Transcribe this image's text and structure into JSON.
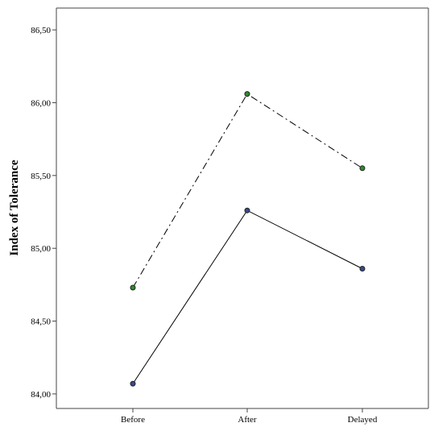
{
  "chart_data": {
    "type": "line",
    "x": [
      "Before",
      "After",
      "Delayed"
    ],
    "ylabel": "Index of Tolerance",
    "xlabel": "",
    "ylim": [
      83.9,
      86.65
    ],
    "yticks": [
      "84,00",
      "84,50",
      "85,00",
      "85,50",
      "86,00",
      "86,50"
    ],
    "ytick_values": [
      84.0,
      84.5,
      85.0,
      85.5,
      86.0,
      86.5
    ],
    "grid": false,
    "series": [
      {
        "style": "dash-dot",
        "line_color": "#000000",
        "marker_color": "#2e8b2e",
        "values": [
          84.73,
          86.06,
          85.55
        ]
      },
      {
        "style": "solid",
        "line_color": "#000000",
        "marker_color": "#3a4a8c",
        "values": [
          84.07,
          85.26,
          84.86
        ]
      }
    ]
  }
}
